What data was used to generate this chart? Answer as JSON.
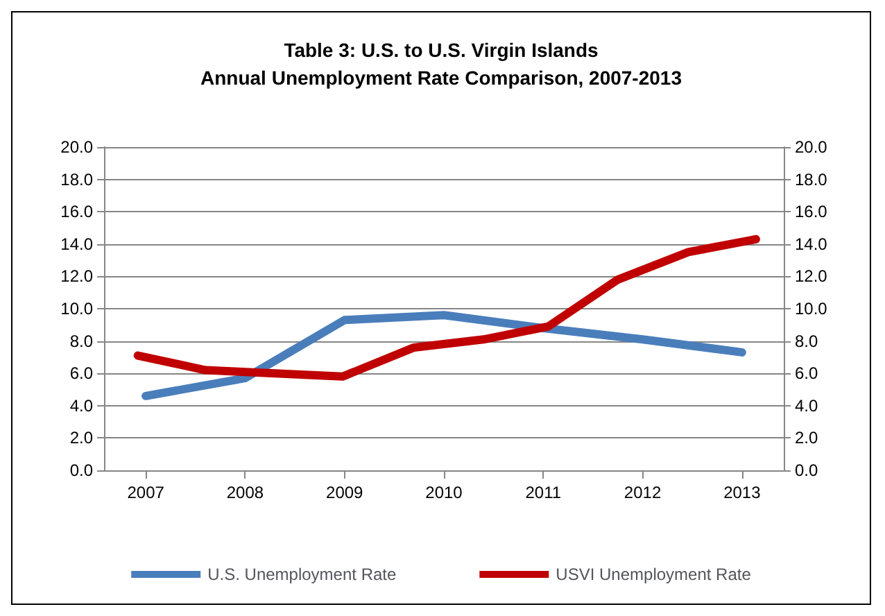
{
  "chart_data": {
    "type": "line",
    "title": "Table 3: U.S. to U.S. Virgin Islands\nAnnual Unemployment Rate Comparison, 2007-2013",
    "xlim": [
      2006.58,
      2013.42
    ],
    "xticks": [
      2007,
      2008,
      2009,
      2010,
      2011,
      2012,
      2013
    ],
    "ylim": [
      0,
      20
    ],
    "yticks": [
      {
        "value": 0,
        "label": "0.0"
      },
      {
        "value": 2,
        "label": "2.0"
      },
      {
        "value": 4,
        "label": "4.0"
      },
      {
        "value": 6,
        "label": "6.0"
      },
      {
        "value": 8,
        "label": "8.0"
      },
      {
        "value": 10,
        "label": "10.0"
      },
      {
        "value": 12,
        "label": "12.0"
      },
      {
        "value": 14,
        "label": "14.0"
      },
      {
        "value": 16,
        "label": "16.0"
      },
      {
        "value": 18,
        "label": "18.0"
      },
      {
        "value": 20,
        "label": "20.0"
      }
    ],
    "y2lim": [
      0,
      20
    ],
    "y2ticks": [
      {
        "value": 0,
        "label": "0.0"
      },
      {
        "value": 2,
        "label": "2.0"
      },
      {
        "value": 4,
        "label": "4.0"
      },
      {
        "value": 6,
        "label": "6.0"
      },
      {
        "value": 8,
        "label": "8.0"
      },
      {
        "value": 10,
        "label": "10.0"
      },
      {
        "value": 12,
        "label": "12.0"
      },
      {
        "value": 14,
        "label": "14.0"
      },
      {
        "value": 16,
        "label": "16.0"
      },
      {
        "value": 18,
        "label": "18.0"
      },
      {
        "value": 20,
        "label": "20.0"
      }
    ],
    "grid": "y",
    "legend": "bottom",
    "marker": "none",
    "line_style": "solid",
    "series": [
      {
        "name": "U.S. Unemployment Rate",
        "color": "#4a7ebb",
        "x": [
          2007,
          2008,
          2009,
          2010,
          2011,
          2012,
          2013
        ],
        "values": [
          4.6,
          5.7,
          9.3,
          9.6,
          8.8,
          8.1,
          7.3
        ]
      },
      {
        "name": "USVI Unemployment Rate",
        "color": "#c00000",
        "x": [
          2006.92,
          2007.6,
          2008.3,
          2008.98,
          2009.7,
          2010.4,
          2011.05,
          2011.75,
          2012.46,
          2013.14
        ],
        "values": [
          7.1,
          6.2,
          6.0,
          5.8,
          7.6,
          8.1,
          8.9,
          11.8,
          13.5,
          14.3
        ]
      }
    ]
  }
}
